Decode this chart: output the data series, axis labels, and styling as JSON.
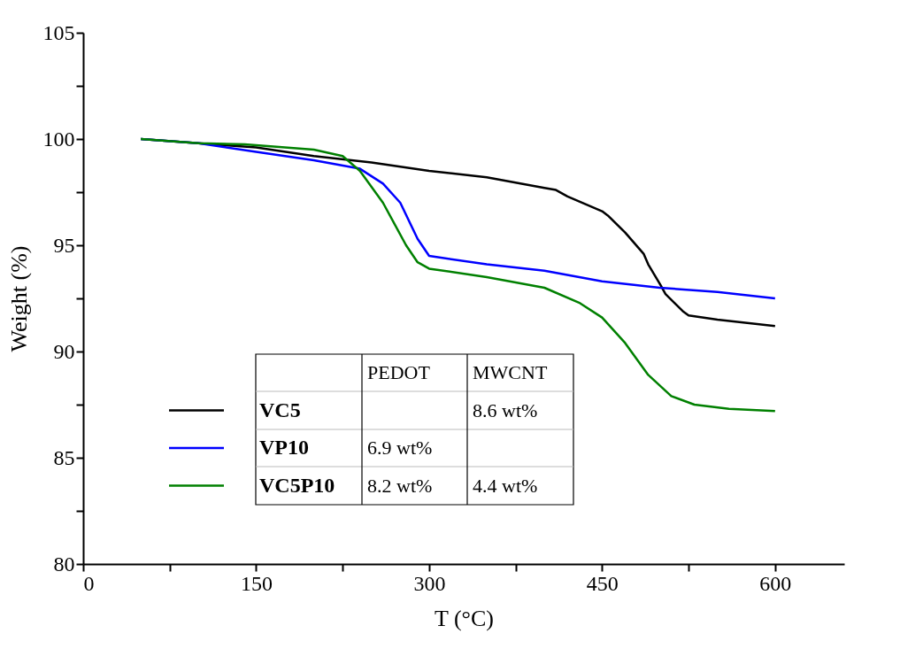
{
  "chart_data": {
    "type": "line",
    "xlabel": "T (°C)",
    "ylabel": "Weight (%)",
    "xlim": [
      0,
      660
    ],
    "ylim": [
      80,
      105
    ],
    "xticks": [
      0,
      {
        "value": 75,
        "label": null
      },
      150,
      {
        "value": 225,
        "label": null
      },
      300,
      {
        "value": 375,
        "label": null
      },
      450,
      {
        "value": 525,
        "label": null
      },
      600
    ],
    "yticks": [
      80,
      {
        "value": 82.5,
        "label": null
      },
      85,
      {
        "value": 87.5,
        "label": null
      },
      90,
      {
        "value": 92.5,
        "label": null
      },
      95,
      {
        "value": 97.5,
        "label": null
      },
      100,
      {
        "value": 102.5,
        "label": null
      },
      105
    ],
    "grid": false,
    "legend": "bottom",
    "marker": "none",
    "line_style": "solid",
    "annotations": [
      "PEDOT",
      "MWCNT",
      "8.6 wt%",
      "6.9 wt%",
      "8.2 wt%",
      "4.4 wt%"
    ],
    "series": [
      {
        "name": "VC5",
        "color": "#000000",
        "x": [
          50,
          100,
          150,
          200,
          250,
          300,
          350,
          400,
          410,
          420,
          450,
          455,
          470,
          486,
          490,
          501,
          505,
          520,
          525,
          550,
          600
        ],
        "values": [
          100,
          99.8,
          99.6,
          99.2,
          98.9,
          98.5,
          98.2,
          97.7,
          97.6,
          97.3,
          96.6,
          96.4,
          95.6,
          94.6,
          94.1,
          93.1,
          92.7,
          91.9,
          91.7,
          91.5,
          91.2
        ]
      },
      {
        "name": "VP10",
        "color": "#0000ff",
        "x": [
          50,
          100,
          150,
          200,
          240,
          260,
          275,
          290,
          300,
          350,
          400,
          450,
          500,
          550,
          600
        ],
        "values": [
          100,
          99.8,
          99.4,
          99.0,
          98.6,
          97.9,
          97.0,
          95.3,
          94.5,
          94.1,
          93.8,
          93.3,
          93.0,
          92.8,
          92.5
        ]
      },
      {
        "name": "VC5P10",
        "color": "#008000",
        "x": [
          50,
          100,
          140,
          200,
          225,
          240,
          260,
          280,
          290,
          300,
          350,
          400,
          430,
          450,
          470,
          490,
          510,
          530,
          560,
          600
        ],
        "values": [
          100,
          99.8,
          99.75,
          99.5,
          99.2,
          98.5,
          97.0,
          95.0,
          94.2,
          93.9,
          93.5,
          93.0,
          92.3,
          91.6,
          90.4,
          88.9,
          87.9,
          87.5,
          87.3,
          87.2
        ]
      }
    ]
  }
}
